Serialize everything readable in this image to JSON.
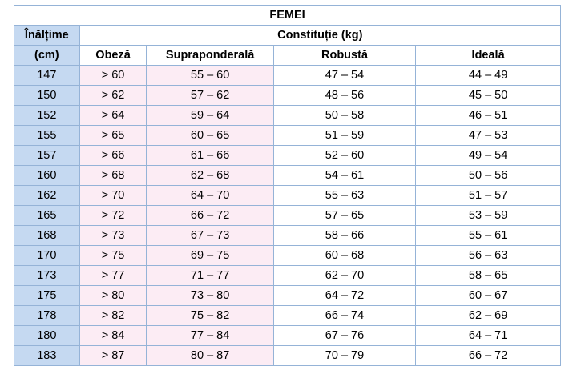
{
  "table": {
    "title": "FEMEI",
    "height_header_line1": "Înălțime",
    "height_header_line2": "(cm)",
    "constitution_header": "Constituție (kg)",
    "columns": [
      "Obeză",
      "Supraponderală",
      "Robustă",
      "Ideală"
    ],
    "rows": [
      {
        "height": "147",
        "obeza": "> 60",
        "supraponderala": "55 – 60",
        "robusta": "47 – 54",
        "ideala": "44 – 49"
      },
      {
        "height": "150",
        "obeza": "> 62",
        "supraponderala": "57 – 62",
        "robusta": "48 – 56",
        "ideala": "45 – 50"
      },
      {
        "height": "152",
        "obeza": "> 64",
        "supraponderala": "59 – 64",
        "robusta": "50 – 58",
        "ideala": "46 – 51"
      },
      {
        "height": "155",
        "obeza": "> 65",
        "supraponderala": "60 – 65",
        "robusta": "51 – 59",
        "ideala": "47 – 53"
      },
      {
        "height": "157",
        "obeza": "> 66",
        "supraponderala": "61 – 66",
        "robusta": "52 – 60",
        "ideala": "49 – 54"
      },
      {
        "height": "160",
        "obeza": "> 68",
        "supraponderala": "62 – 68",
        "robusta": "54 – 61",
        "ideala": "50 – 56"
      },
      {
        "height": "162",
        "obeza": "> 70",
        "supraponderala": "64 – 70",
        "robusta": "55 – 63",
        "ideala": "51 – 57"
      },
      {
        "height": "165",
        "obeza": "> 72",
        "supraponderala": "66 – 72",
        "robusta": "57 – 65",
        "ideala": "53 – 59"
      },
      {
        "height": "168",
        "obeza": "> 73",
        "supraponderala": "67 – 73",
        "robusta": "58 – 66",
        "ideala": "55 – 61"
      },
      {
        "height": "170",
        "obeza": "> 75",
        "supraponderala": "69 – 75",
        "robusta": "60 – 68",
        "ideala": "56 – 63"
      },
      {
        "height": "173",
        "obeza": "> 77",
        "supraponderala": "71 – 77",
        "robusta": "62 – 70",
        "ideala": "58 – 65"
      },
      {
        "height": "175",
        "obeza": "> 80",
        "supraponderala": "73 – 80",
        "robusta": "64 – 72",
        "ideala": "60 – 67"
      },
      {
        "height": "178",
        "obeza": "> 82",
        "supraponderala": "75 – 82",
        "robusta": "66 – 74",
        "ideala": "62 – 69"
      },
      {
        "height": "180",
        "obeza": "> 84",
        "supraponderala": "77 – 84",
        "robusta": "67 – 76",
        "ideala": "64 – 71"
      },
      {
        "height": "183",
        "obeza": "> 87",
        "supraponderala": "80 – 87",
        "robusta": "70 – 79",
        "ideala": "66 – 72"
      }
    ]
  },
  "colors": {
    "border": "#95b3d7",
    "height_column": "#c5d9f1",
    "pink_columns": "#fcecf4",
    "white_columns": "#ffffff"
  }
}
